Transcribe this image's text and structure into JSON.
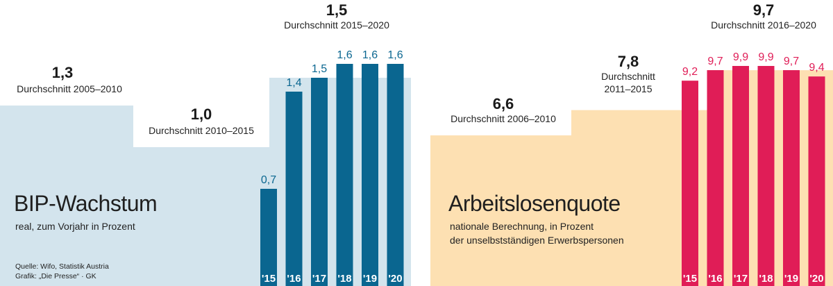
{
  "colors": {
    "gdp_bar": "#0a6690",
    "gdp_area": "#d3e4ed",
    "unemp_bar": "#e01d57",
    "unemp_area": "#fde0b2"
  },
  "footer": {
    "source": "Quelle: Wifo, Statistik Austria",
    "credit": "Grafik: „Die Presse“ · GK"
  },
  "chart_data": [
    {
      "type": "bar",
      "title": "BIP-Wachstum",
      "subtitle": "real, zum Vorjahr in Prozent",
      "categories": [
        "'15",
        "'16",
        "'17",
        "'18",
        "'19",
        "'20"
      ],
      "value_labels": [
        "0,7",
        "1,4",
        "1,5",
        "1,6",
        "1,6",
        "1,6"
      ],
      "values": [
        0.7,
        1.4,
        1.5,
        1.6,
        1.6,
        1.6
      ],
      "ylim": [
        0,
        1.6
      ],
      "averages": [
        {
          "value": 1.3,
          "value_label": "1,3",
          "label": "Durchschnitt 2005–2010"
        },
        {
          "value": 1.0,
          "value_label": "1,0",
          "label": "Durchschnitt 2010–2015"
        },
        {
          "value": 1.5,
          "value_label": "1,5",
          "label": "Durchschnitt 2015–2020"
        }
      ]
    },
    {
      "type": "bar",
      "title": "Arbeitslosenquote",
      "subtitle_lines": [
        "nationale Berechnung, in Prozent",
        "der unselbstständigen Erwerbspersonen"
      ],
      "categories": [
        "'15",
        "'16",
        "'17",
        "'18",
        "'19",
        "'20"
      ],
      "value_labels": [
        "9,2",
        "9,7",
        "9,9",
        "9,9",
        "9,7",
        "9,4"
      ],
      "values": [
        9.2,
        9.7,
        9.9,
        9.9,
        9.7,
        9.4
      ],
      "averages": [
        {
          "value": 6.6,
          "value_label": "6,6",
          "label": "Durchschnitt 2006–2010"
        },
        {
          "value": 7.8,
          "value_label": "7,8",
          "label_lines": [
            "Durchschnitt",
            "2011–2015"
          ]
        },
        {
          "value": 9.7,
          "value_label": "9,7",
          "label": "Durchschnitt 2016–2020"
        }
      ]
    }
  ]
}
